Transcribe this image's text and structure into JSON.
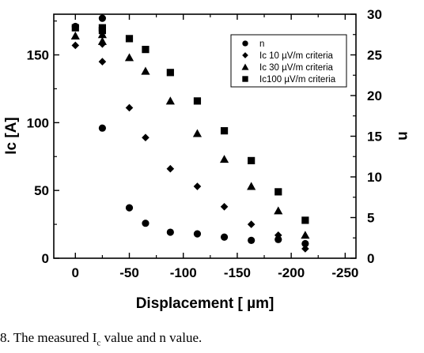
{
  "chart_data": {
    "type": "scatter",
    "xlabel": "Displacement [ µm]",
    "ylabel": "Ic [A]",
    "y2label": "n",
    "xlim": [
      20,
      -260
    ],
    "ylim": [
      0,
      180
    ],
    "y2lim": [
      0,
      30
    ],
    "x_reversed": true,
    "x_ticks": [
      0,
      -50,
      -100,
      -150,
      -200,
      -250
    ],
    "x_tick_labels": [
      "0",
      "-50",
      "-100",
      "-150",
      "-200",
      "-250"
    ],
    "y_ticks": [
      0,
      50,
      100,
      150
    ],
    "y_tick_labels": [
      "0",
      "50",
      "100",
      "150"
    ],
    "y2_ticks": [
      0,
      5,
      10,
      15,
      20,
      25,
      30
    ],
    "y2_tick_labels": [
      "0",
      "5",
      "10",
      "15",
      "20",
      "25",
      "30"
    ],
    "grid": false,
    "legend_position": "top-right",
    "series": [
      {
        "name": "n",
        "marker": "circle",
        "axis": "right",
        "x": [
          -25,
          0,
          -25,
          -50,
          -65,
          -88,
          -113,
          -138,
          -163,
          -188,
          -213
        ],
        "values": [
          29.5,
          28.5,
          16,
          6.2,
          4.3,
          3.2,
          3.0,
          2.6,
          2.2,
          2.3,
          1.8
        ]
      },
      {
        "name": "Ic 10 µV/m criteria",
        "marker": "diamond",
        "axis": "left",
        "x": [
          -25,
          0,
          -25,
          -50,
          -65,
          -88,
          -113,
          -138,
          -163,
          -188,
          -213
        ],
        "values": [
          158,
          157,
          145,
          111,
          89,
          66,
          53,
          38,
          25,
          17,
          7
        ]
      },
      {
        "name": "Ic  30 µV/m criteria",
        "marker": "triangle",
        "axis": "left",
        "x": [
          -25,
          0,
          -25,
          -50,
          -65,
          -88,
          -113,
          -138,
          -163,
          -188,
          -213
        ],
        "values": [
          165,
          164,
          160,
          148,
          138,
          116,
          92,
          73,
          53,
          35,
          17
        ]
      },
      {
        "name": "Ic100 µV/m criteria",
        "marker": "square",
        "axis": "left",
        "x": [
          -25,
          0,
          -25,
          -50,
          -65,
          -88,
          -113,
          -138,
          -163,
          -188,
          -213
        ],
        "values": [
          170,
          170,
          168,
          162,
          154,
          137,
          116,
          94,
          72,
          49,
          28
        ]
      }
    ]
  },
  "caption": {
    "prefix": "8.   The measured I",
    "sub": "c",
    "suffix": "  value and n value."
  }
}
